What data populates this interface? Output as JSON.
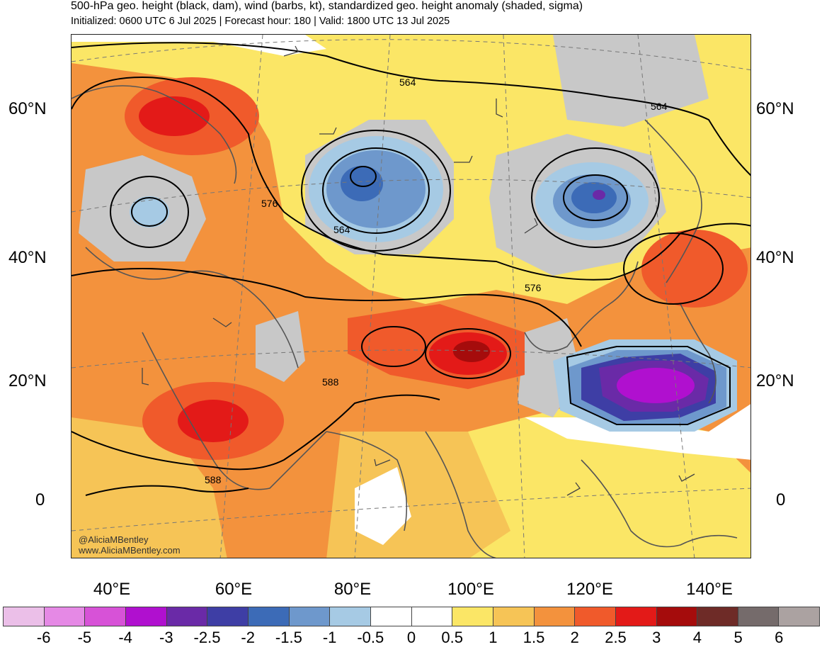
{
  "title": "500-hPa geo. height (black, dam), wind (barbs, kt), standardized geo. height anomaly (shaded, sigma)",
  "subtitle": "Initialized: 0600 UTC 6 Jul 2025 | Forecast hour: 180 | Valid: 1800 UTC 13 Jul 2025",
  "lat_labels": [
    "60°N",
    "40°N",
    "20°N",
    "0"
  ],
  "lon_labels": [
    "40°E",
    "60°E",
    "80°E",
    "100°E",
    "120°E",
    "140°E"
  ],
  "contour_labels": [
    "564",
    "564",
    "564",
    "576",
    "576",
    "588",
    "588"
  ],
  "watermark": {
    "handle": "@AliciaMBentley",
    "url": "www.AliciaMBentley.com"
  },
  "colorbar": {
    "tick_labels": [
      "-6",
      "-5",
      "-4",
      "-3",
      "-2.5",
      "-2",
      "-1.5",
      "-1",
      "-0.5",
      "0",
      "0.5",
      "1",
      "1.5",
      "2",
      "2.5",
      "3",
      "4",
      "5",
      "6"
    ],
    "colors": [
      "#ebbfe8",
      "#e589e5",
      "#d752d7",
      "#b010cf",
      "#6a2aa7",
      "#3e3ea5",
      "#3c6bb7",
      "#6e98cc",
      "#a6cae4",
      "#ffffff",
      "#ffffff",
      "#fbe666",
      "#f6c456",
      "#f3923d",
      "#f05a2b",
      "#e31a18",
      "#a50c0c",
      "#6e2b27",
      "#756b6b",
      "#aba2a1"
    ]
  },
  "palette": {
    "land_gray": "#c8c8c8",
    "yellow": "#fbe666",
    "light_orange": "#f6c456",
    "orange": "#f3923d",
    "red_orange": "#f05a2b",
    "red": "#e31a18",
    "dark_red": "#a50c0c",
    "light_blue": "#a6cae4",
    "mid_blue": "#6e98cc",
    "blue": "#3c6bb7",
    "dark_blue": "#3e3ea5",
    "violet": "#6a2aa7",
    "purple": "#b010cf"
  }
}
